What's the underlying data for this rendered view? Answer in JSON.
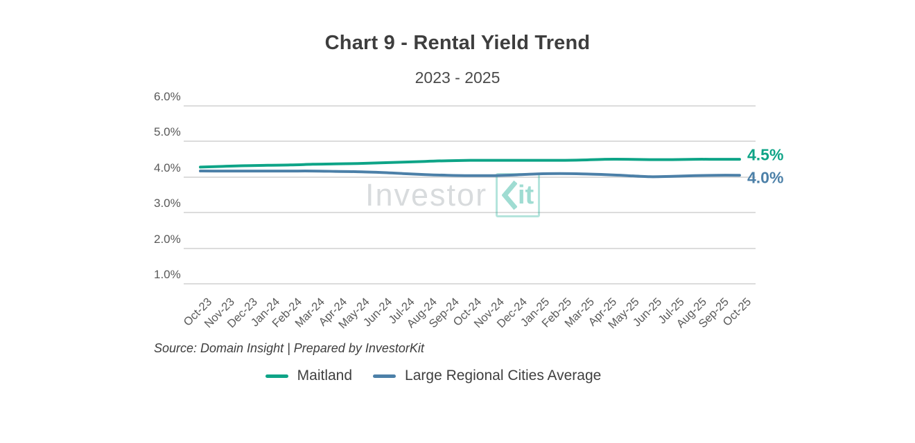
{
  "chart_data": {
    "type": "line",
    "title": "Chart 9 - Rental Yield Trend",
    "subtitle": "2023 - 2025",
    "xlabel": "",
    "ylabel": "",
    "ylim": [
      1.0,
      6.0
    ],
    "grid": "horizontal",
    "legend_position": "bottom",
    "yticks": [
      {
        "value": 6.0,
        "label": "6.0%"
      },
      {
        "value": 5.0,
        "label": "5.0%"
      },
      {
        "value": 4.0,
        "label": "4.0%"
      },
      {
        "value": 3.0,
        "label": "3.0%"
      },
      {
        "value": 2.0,
        "label": "2.0%"
      },
      {
        "value": 1.0,
        "label": "1.0%"
      }
    ],
    "categories": [
      "Oct-23",
      "Nov-23",
      "Dec-23",
      "Jan-24",
      "Feb-24",
      "Mar-24",
      "Apr-24",
      "May-24",
      "Jun-24",
      "Jul-24",
      "Aug-24",
      "Sep-24",
      "Oct-24",
      "Nov-24",
      "Dec-24",
      "Jan-25",
      "Feb-25",
      "Mar-25",
      "Apr-25",
      "May-25",
      "Jun-25",
      "Jul-25",
      "Aug-25",
      "Sep-25",
      "Oct-25"
    ],
    "series": [
      {
        "name": "Maitland",
        "color": "#0ea487",
        "end_label": "4.5%",
        "values": [
          4.28,
          4.3,
          4.32,
          4.33,
          4.34,
          4.36,
          4.37,
          4.38,
          4.4,
          4.42,
          4.44,
          4.46,
          4.47,
          4.47,
          4.47,
          4.47,
          4.47,
          4.48,
          4.5,
          4.5,
          4.49,
          4.49,
          4.5,
          4.5,
          4.5
        ]
      },
      {
        "name": "Large Regional Cities Average",
        "color": "#4c80a8",
        "end_label": "4.0%",
        "values": [
          4.17,
          4.17,
          4.17,
          4.17,
          4.17,
          4.17,
          4.16,
          4.15,
          4.13,
          4.1,
          4.07,
          4.05,
          4.04,
          4.04,
          4.06,
          4.09,
          4.1,
          4.09,
          4.07,
          4.04,
          4.01,
          4.02,
          4.04,
          4.05,
          4.05
        ]
      }
    ]
  },
  "source_note": "Source: Domain Insight | Prepared by InvestorKit",
  "watermark": {
    "brand": "InvestorKit",
    "prefix": "Investor",
    "boxed_word": "Kit",
    "boxed_suffix": "it"
  },
  "colors": {
    "maitland": "#0ea487",
    "large_regional_avg": "#4c80a8",
    "gridline": "#dcdcdc",
    "axis_text": "#595959",
    "title_text": "#3e3e3e"
  }
}
